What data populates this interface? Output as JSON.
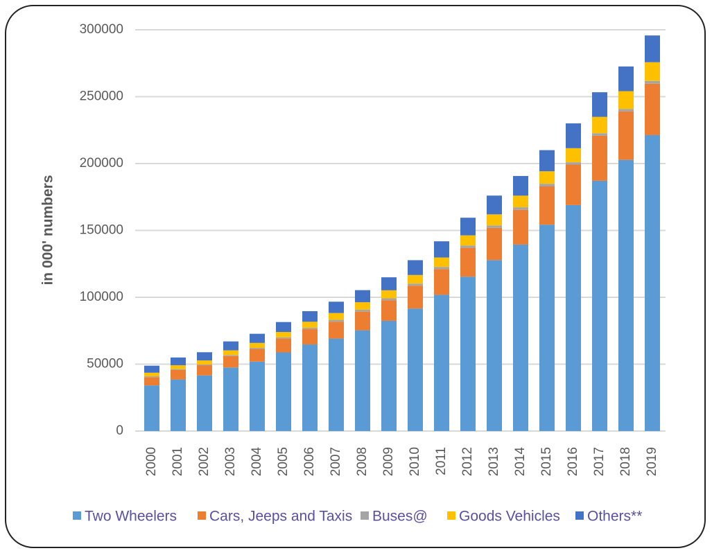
{
  "chart_data": {
    "type": "bar",
    "stacked": true,
    "y_label": "in 000' numbers",
    "categories": [
      "2000",
      "2001",
      "2002",
      "2003",
      "2004",
      "2005",
      "2006",
      "2007",
      "2008",
      "2009",
      "2010",
      "2011",
      "2012",
      "2013",
      "2014",
      "2015",
      "2016",
      "2017",
      "2018",
      "2019"
    ],
    "series": [
      {
        "name": "Two Wheelers",
        "color": "#5b9bd5",
        "values": [
          34118,
          38556,
          41581,
          47519,
          51922,
          58799,
          64743,
          69129,
          75336,
          82402,
          91598,
          101865,
          115419,
          127830,
          139410,
          154298,
          168975,
          187091,
          202755,
          221270
        ]
      },
      {
        "name": "Cars, Jeeps and Taxis",
        "color": "#ed7d31",
        "values": [
          6143,
          7058,
          7613,
          8599,
          9451,
          10320,
          11526,
          12649,
          13950,
          15313,
          17109,
          19231,
          21568,
          24056,
          25998,
          28611,
          30242,
          33688,
          36154,
          38432
        ]
      },
      {
        "name": "Buses@",
        "color": "#a5a5a5",
        "values": [
          634,
          634,
          635,
          721,
          768,
          892,
          992,
          1350,
          1427,
          1486,
          1527,
          1604,
          1677,
          1814,
          1887,
          1971,
          1757,
          1864,
          1940,
          2050
        ]
      },
      {
        "name": "Goods Vehicles",
        "color": "#ffc000",
        "values": [
          2715,
          2948,
          2974,
          3492,
          3749,
          4031,
          4436,
          5119,
          5601,
          6041,
          6432,
          7064,
          7658,
          8307,
          8698,
          9344,
          10516,
          12257,
          13292,
          14000
        ]
      },
      {
        "name": "Others**",
        "color": "#4472c4",
        "values": [
          5247,
          5795,
          6121,
          6676,
          6828,
          7460,
          7921,
          8460,
          9039,
          9709,
          11080,
          12102,
          13169,
          14037,
          14711,
          15799,
          18541,
          18411,
          18446,
          20020
        ]
      }
    ],
    "ylim": [
      0,
      300000
    ],
    "yticks": [
      0,
      50000,
      100000,
      150000,
      200000,
      250000,
      300000
    ],
    "grid": true,
    "legend": "bottom"
  }
}
